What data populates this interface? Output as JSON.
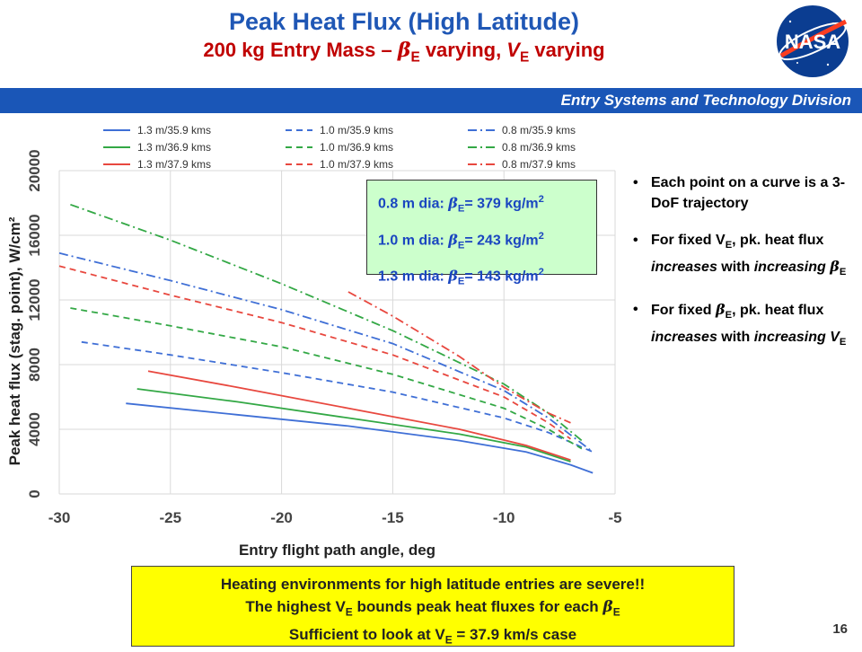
{
  "slide": {
    "title": "Peak Heat Flux (High Latitude)",
    "subtitle": {
      "prefix": "200 kg Entry Mass – ",
      "beta": "β",
      "sub": "E",
      "mid": " varying, ",
      "v": "V",
      "vsub": "E",
      "suffix": " varying"
    },
    "banner": "Entry Systems and Technology Division",
    "logo_text": "NASA",
    "page_number": "16"
  },
  "diameter_box": [
    {
      "prefix": "0.8 m dia: ",
      "value": "= 379 kg/m",
      "exp": "2"
    },
    {
      "prefix": "1.0 m dia: ",
      "value": "= 243 kg/m",
      "exp": "2"
    },
    {
      "prefix": "1.3 m dia: ",
      "value": "= 143 kg/m",
      "exp": "2"
    }
  ],
  "bullets": [
    {
      "text": "Each point on a curve is a 3-DoF trajectory"
    },
    {
      "a": "For fixed V",
      "asub": "E",
      "b": ", pk. heat flux ",
      "c": "increases",
      "d": " with ",
      "e": "increasing ",
      "f": "β",
      "fsub": "E"
    },
    {
      "a": "For fixed ",
      "b": "β",
      "bsub": "E",
      "c": ", pk. heat flux ",
      "d": "increases",
      "e": " with ",
      "f": "increasing V",
      "fsub": "E"
    }
  ],
  "callout": {
    "line1": "Heating environments for high latitude entries are severe!!",
    "line2": {
      "a": "The highest V",
      "asub": "E",
      "b": " bounds peak heat fluxes for each ",
      "c": "β",
      "csub": "E"
    },
    "line3": {
      "a": "Sufficient to look at V",
      "asub": "E",
      "b": " = 37.9 km/s case"
    }
  },
  "colors": {
    "blue": "#3f6fd6",
    "green": "#33a845",
    "red": "#e8483f",
    "title": "#1f57b5",
    "subtitle": "#c00000",
    "banner": "#1a56b7"
  },
  "chart_data": {
    "type": "line",
    "xlabel": "Entry flight path angle, deg",
    "ylabel": "Peak heat flux (stag. point), W/cm²",
    "xlim": [
      -30,
      -5
    ],
    "ylim": [
      0,
      20000
    ],
    "xticks": [
      -30,
      -25,
      -20,
      -15,
      -10,
      -5
    ],
    "yticks": [
      0,
      4000,
      8000,
      12000,
      16000,
      20000
    ],
    "grid": true,
    "legend_position": "top",
    "series": [
      {
        "name": "1.3 m/35.9 kms",
        "color": "blue",
        "dash": "solid",
        "points": [
          [
            -27,
            5600
          ],
          [
            -22,
            4900
          ],
          [
            -17,
            4200
          ],
          [
            -12,
            3300
          ],
          [
            -9,
            2600
          ],
          [
            -7,
            1800
          ],
          [
            -6,
            1300
          ]
        ]
      },
      {
        "name": "1.3 m/36.9 kms",
        "color": "green",
        "dash": "solid",
        "points": [
          [
            -26.5,
            6500
          ],
          [
            -22,
            5700
          ],
          [
            -17,
            4700
          ],
          [
            -12,
            3700
          ],
          [
            -9,
            2900
          ],
          [
            -7,
            2000
          ]
        ]
      },
      {
        "name": "1.3 m/37.9 kms",
        "color": "red",
        "dash": "solid",
        "points": [
          [
            -26,
            7600
          ],
          [
            -22,
            6600
          ],
          [
            -17,
            5300
          ],
          [
            -12,
            4000
          ],
          [
            -9,
            3000
          ],
          [
            -7,
            2100
          ]
        ]
      },
      {
        "name": "1.0 m/35.9 kms",
        "color": "blue",
        "dash": "dash",
        "points": [
          [
            -29,
            9400
          ],
          [
            -25,
            8600
          ],
          [
            -20,
            7500
          ],
          [
            -15,
            6300
          ],
          [
            -10,
            4700
          ],
          [
            -8,
            3800
          ],
          [
            -6,
            2600
          ]
        ]
      },
      {
        "name": "1.0 m/36.9 kms",
        "color": "green",
        "dash": "dash",
        "points": [
          [
            -29.5,
            11500
          ],
          [
            -25,
            10400
          ],
          [
            -20,
            9100
          ],
          [
            -15,
            7400
          ],
          [
            -10,
            5300
          ],
          [
            -8,
            4000
          ],
          [
            -6.5,
            2800
          ]
        ]
      },
      {
        "name": "1.0 m/37.9 kms",
        "color": "red",
        "dash": "dash",
        "points": [
          [
            -30,
            14100
          ],
          [
            -25,
            12300
          ],
          [
            -20,
            10600
          ],
          [
            -15,
            8600
          ],
          [
            -10,
            6000
          ],
          [
            -8,
            4400
          ],
          [
            -7,
            3400
          ]
        ]
      },
      {
        "name": "0.8 m/35.9 kms",
        "color": "blue",
        "dash": "dashdot",
        "points": [
          [
            -30,
            14900
          ],
          [
            -25,
            13200
          ],
          [
            -20,
            11400
          ],
          [
            -15,
            9300
          ],
          [
            -10,
            6400
          ],
          [
            -8,
            4700
          ],
          [
            -6,
            2600
          ]
        ]
      },
      {
        "name": "0.8 m/36.9 kms",
        "color": "green",
        "dash": "dashdot",
        "points": [
          [
            -29.5,
            17900
          ],
          [
            -25,
            15700
          ],
          [
            -20,
            13000
          ],
          [
            -15,
            10100
          ],
          [
            -10,
            6800
          ],
          [
            -8,
            5000
          ],
          [
            -6.5,
            3300
          ]
        ]
      },
      {
        "name": "0.8 m/37.9 kms",
        "color": "red",
        "dash": "dashdot",
        "points": [
          [
            -17,
            12500
          ],
          [
            -15,
            11000
          ],
          [
            -12,
            8500
          ],
          [
            -10,
            6600
          ],
          [
            -8,
            5000
          ],
          [
            -7,
            4400
          ]
        ]
      }
    ]
  }
}
